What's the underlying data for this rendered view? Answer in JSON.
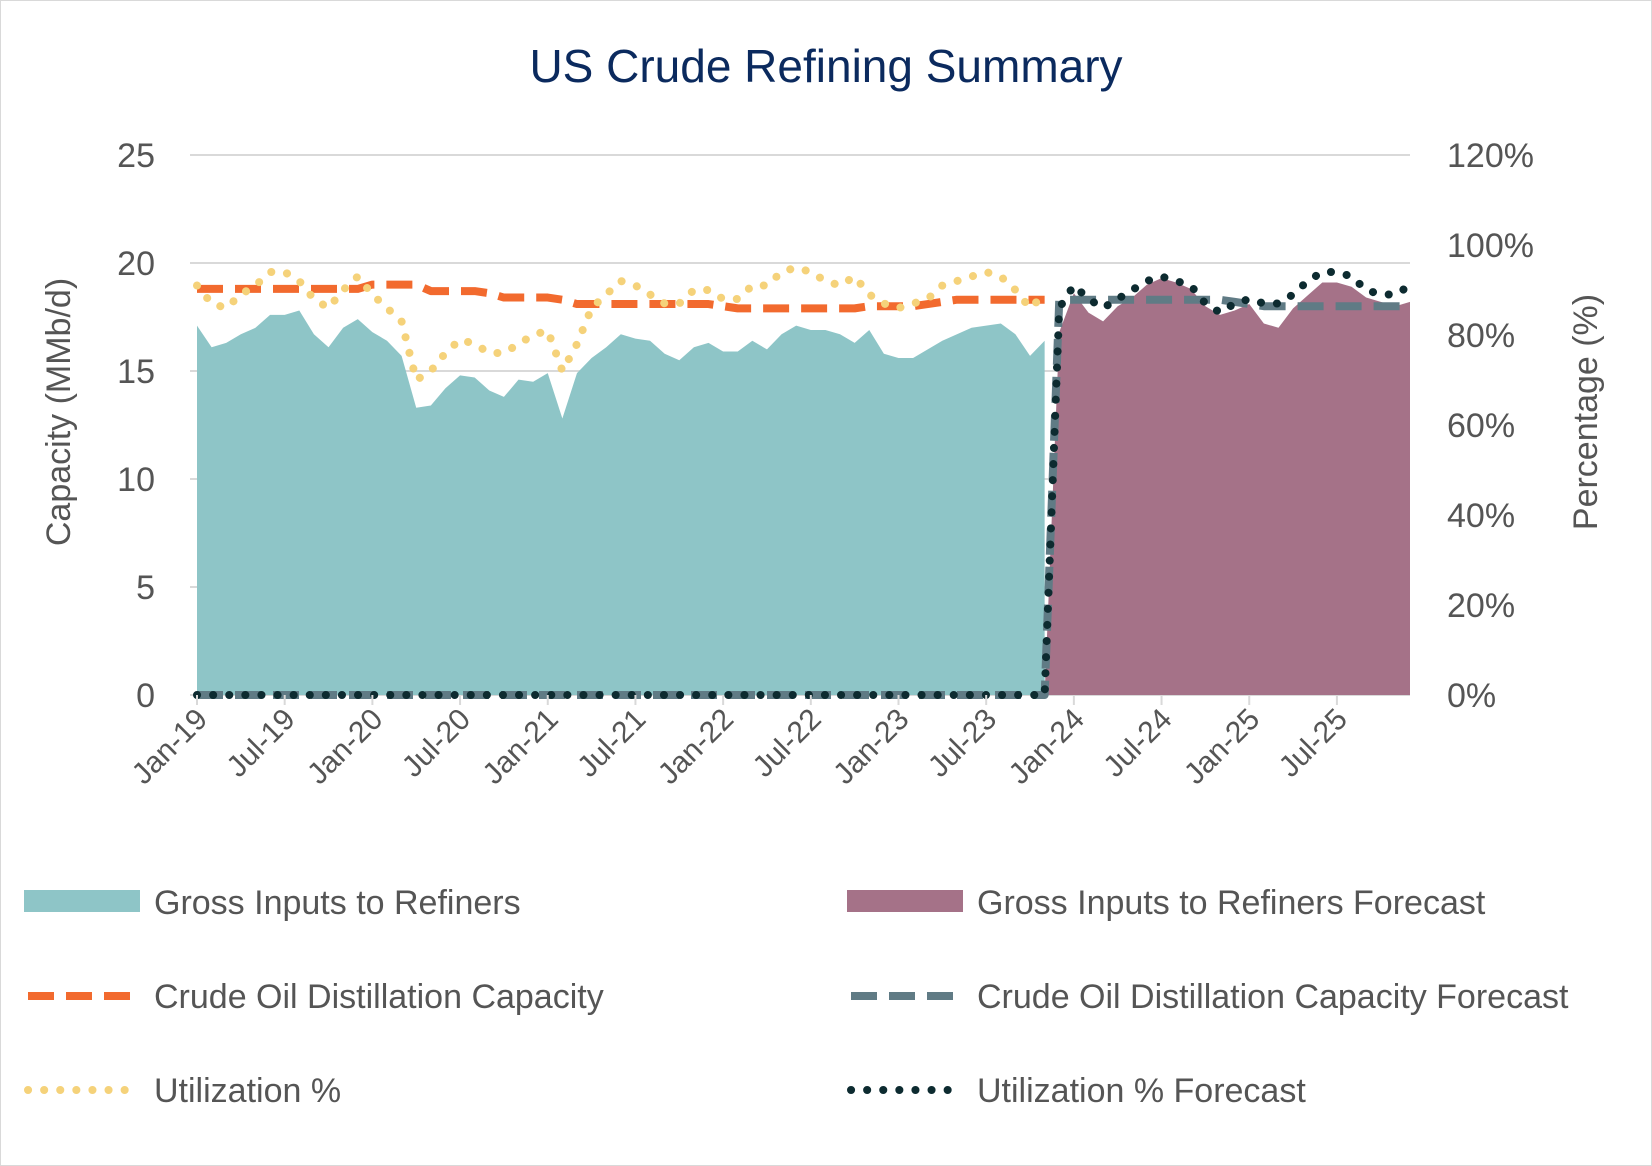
{
  "chart_data": {
    "type": "area",
    "title": "US Crude Refining Summary",
    "ylabel": "Capacity (MMb/d)",
    "y2label": "Percentage (%)",
    "ylim": [
      0,
      25
    ],
    "y2lim": [
      0,
      1.2
    ],
    "yticks": [
      "0",
      "5",
      "10",
      "15",
      "20",
      "25"
    ],
    "y2ticks": [
      "0%",
      "20%",
      "40%",
      "60%",
      "80%",
      "100%",
      "120%"
    ],
    "x_tick_labels": [
      "Jan-19",
      "Jul-19",
      "Jan-20",
      "Jul-20",
      "Jan-21",
      "Jul-21",
      "Jan-22",
      "Jul-22",
      "Jan-23",
      "Jul-23",
      "Jan-24",
      "Jul-24",
      "Jan-25",
      "Jul-25"
    ],
    "x_months": [
      "Jan-19",
      "Feb-19",
      "Mar-19",
      "Apr-19",
      "May-19",
      "Jun-19",
      "Jul-19",
      "Aug-19",
      "Sep-19",
      "Oct-19",
      "Nov-19",
      "Dec-19",
      "Jan-20",
      "Feb-20",
      "Mar-20",
      "Apr-20",
      "May-20",
      "Jun-20",
      "Jul-20",
      "Aug-20",
      "Sep-20",
      "Oct-20",
      "Nov-20",
      "Dec-20",
      "Jan-21",
      "Feb-21",
      "Mar-21",
      "Apr-21",
      "May-21",
      "Jun-21",
      "Jul-21",
      "Aug-21",
      "Sep-21",
      "Oct-21",
      "Nov-21",
      "Dec-21",
      "Jan-22",
      "Feb-22",
      "Mar-22",
      "Apr-22",
      "May-22",
      "Jun-22",
      "Jul-22",
      "Aug-22",
      "Sep-22",
      "Oct-22",
      "Nov-22",
      "Dec-22",
      "Jan-23",
      "Feb-23",
      "Mar-23",
      "Apr-23",
      "May-23",
      "Jun-23",
      "Jul-23",
      "Aug-23",
      "Sep-23",
      "Oct-23",
      "Nov-23",
      "Dec-23",
      "Jan-24",
      "Feb-24",
      "Mar-24",
      "Apr-24",
      "May-24",
      "Jun-24",
      "Jul-24",
      "Aug-24",
      "Sep-24",
      "Oct-24",
      "Nov-24",
      "Dec-24",
      "Jan-25",
      "Feb-25",
      "Mar-25",
      "Apr-25",
      "May-25",
      "Jun-25",
      "Jul-25",
      "Aug-25",
      "Sep-25",
      "Oct-25",
      "Nov-25",
      "Dec-25"
    ],
    "series": [
      {
        "name": "Gross Inputs to Refiners",
        "kind": "area",
        "axis": "left",
        "color": "#8ec5c7",
        "values": [
          17.1,
          16.1,
          16.3,
          16.7,
          17.0,
          17.6,
          17.6,
          17.8,
          16.7,
          16.1,
          17.0,
          17.4,
          16.8,
          16.4,
          15.7,
          13.3,
          13.4,
          14.2,
          14.8,
          14.7,
          14.1,
          13.8,
          14.6,
          14.5,
          14.9,
          12.8,
          14.9,
          15.6,
          16.1,
          16.7,
          16.5,
          16.4,
          15.8,
          15.5,
          16.1,
          16.3,
          15.9,
          15.9,
          16.4,
          16.0,
          16.7,
          17.1,
          16.9,
          16.9,
          16.7,
          16.3,
          16.9,
          15.8,
          15.6,
          15.6,
          16.0,
          16.4,
          16.7,
          17.0,
          17.1,
          17.2,
          16.7,
          15.7,
          16.4,
          null,
          null,
          null,
          null,
          null,
          null,
          null,
          null,
          null,
          null,
          null,
          null,
          null,
          null,
          null,
          null,
          null,
          null,
          null,
          null,
          null,
          null,
          null,
          null,
          null
        ]
      },
      {
        "name": "Gross Inputs to Refiners Forecast",
        "kind": "area",
        "axis": "left",
        "color": "#a57288",
        "values": [
          0,
          0,
          0,
          0,
          0,
          0,
          0,
          0,
          0,
          0,
          0,
          0,
          0,
          0,
          0,
          0,
          0,
          0,
          0,
          0,
          0,
          0,
          0,
          0,
          0,
          0,
          0,
          0,
          0,
          0,
          0,
          0,
          0,
          0,
          0,
          0,
          0,
          0,
          0,
          0,
          0,
          0,
          0,
          0,
          0,
          0,
          0,
          0,
          0,
          0,
          0,
          0,
          0,
          0,
          0,
          0,
          0,
          0,
          0,
          16.8,
          18.6,
          17.7,
          17.3,
          18.0,
          18.4,
          19.0,
          19.3,
          19.1,
          18.8,
          18.0,
          17.6,
          17.8,
          18.1,
          17.2,
          17.0,
          17.9,
          18.5,
          19.1,
          19.1,
          18.9,
          18.4,
          18.2,
          18.0,
          18.2
        ]
      },
      {
        "name": "Crude Oil Distillation Capacity",
        "kind": "line-dashed",
        "axis": "left",
        "color": "#f26a2e",
        "values": [
          18.8,
          18.8,
          18.8,
          18.8,
          18.8,
          18.8,
          18.8,
          18.8,
          18.8,
          18.8,
          18.8,
          18.8,
          19.0,
          19.0,
          19.0,
          19.0,
          18.7,
          18.7,
          18.7,
          18.7,
          18.6,
          18.4,
          18.4,
          18.4,
          18.4,
          18.3,
          18.1,
          18.1,
          18.1,
          18.1,
          18.1,
          18.1,
          18.1,
          18.1,
          18.1,
          18.1,
          18.0,
          17.9,
          17.9,
          17.9,
          17.9,
          17.9,
          17.9,
          17.9,
          17.9,
          17.9,
          18.0,
          18.0,
          18.0,
          18.0,
          18.1,
          18.2,
          18.3,
          18.3,
          18.3,
          18.3,
          18.3,
          18.3,
          18.3,
          null,
          null,
          null,
          null,
          null,
          null,
          null,
          null,
          null,
          null,
          null,
          null,
          null,
          null,
          null,
          null,
          null,
          null,
          null,
          null,
          null,
          null,
          null,
          null,
          null
        ]
      },
      {
        "name": "Crude Oil Distillation Capacity Forecast",
        "kind": "line-dashed",
        "axis": "left",
        "color": "#607b85",
        "values": [
          0,
          0,
          0,
          0,
          0,
          0,
          0,
          0,
          0,
          0,
          0,
          0,
          0,
          0,
          0,
          0,
          0,
          0,
          0,
          0,
          0,
          0,
          0,
          0,
          0,
          0,
          0,
          0,
          0,
          0,
          0,
          0,
          0,
          0,
          0,
          0,
          0,
          0,
          0,
          0,
          0,
          0,
          0,
          0,
          0,
          0,
          0,
          0,
          0,
          0,
          0,
          0,
          0,
          0,
          0,
          0,
          0,
          0,
          0,
          18.3,
          18.3,
          18.3,
          18.3,
          18.3,
          18.3,
          18.3,
          18.3,
          18.3,
          18.3,
          18.3,
          18.3,
          18.2,
          18.1,
          18.0,
          18.0,
          18.0,
          18.0,
          18.0,
          18.0,
          18.0,
          18.0,
          18.0,
          18.0,
          18.0
        ]
      },
      {
        "name": "Utilization %",
        "kind": "line-dotted",
        "axis": "right",
        "color": "#f5d27a",
        "values": [
          0.91,
          0.87,
          0.86,
          0.89,
          0.91,
          0.94,
          0.94,
          0.92,
          0.88,
          0.86,
          0.9,
          0.93,
          0.89,
          0.86,
          0.83,
          0.7,
          0.72,
          0.76,
          0.79,
          0.78,
          0.76,
          0.76,
          0.78,
          0.8,
          0.81,
          0.72,
          0.78,
          0.86,
          0.89,
          0.92,
          0.91,
          0.89,
          0.87,
          0.87,
          0.9,
          0.9,
          0.88,
          0.88,
          0.91,
          0.91,
          0.94,
          0.95,
          0.94,
          0.92,
          0.91,
          0.93,
          0.89,
          0.87,
          0.86,
          0.87,
          0.88,
          0.91,
          0.92,
          0.93,
          0.94,
          0.93,
          0.9,
          0.86,
          0.89,
          null,
          null,
          null,
          null,
          null,
          null,
          null,
          null,
          null,
          null,
          null,
          null,
          null,
          null,
          null,
          null,
          null,
          null,
          null,
          null,
          null,
          null,
          null,
          null,
          null
        ]
      },
      {
        "name": "Utilization % Forecast",
        "kind": "line-dotted",
        "axis": "right",
        "color": "#0d2b30",
        "values": [
          0,
          0,
          0,
          0,
          0,
          0,
          0,
          0,
          0,
          0,
          0,
          0,
          0,
          0,
          0,
          0,
          0,
          0,
          0,
          0,
          0,
          0,
          0,
          0,
          0,
          0,
          0,
          0,
          0,
          0,
          0,
          0,
          0,
          0,
          0,
          0,
          0,
          0,
          0,
          0,
          0,
          0,
          0,
          0,
          0,
          0,
          0,
          0,
          0,
          0,
          0,
          0,
          0,
          0,
          0,
          0,
          0,
          0,
          0,
          0.86,
          0.91,
          0.88,
          0.86,
          0.88,
          0.9,
          0.92,
          0.93,
          0.92,
          0.91,
          0.87,
          0.85,
          0.87,
          0.88,
          0.87,
          0.87,
          0.89,
          0.92,
          0.94,
          0.94,
          0.93,
          0.9,
          0.89,
          0.89,
          0.91
        ]
      }
    ],
    "grid": true,
    "legend": "bottom"
  }
}
